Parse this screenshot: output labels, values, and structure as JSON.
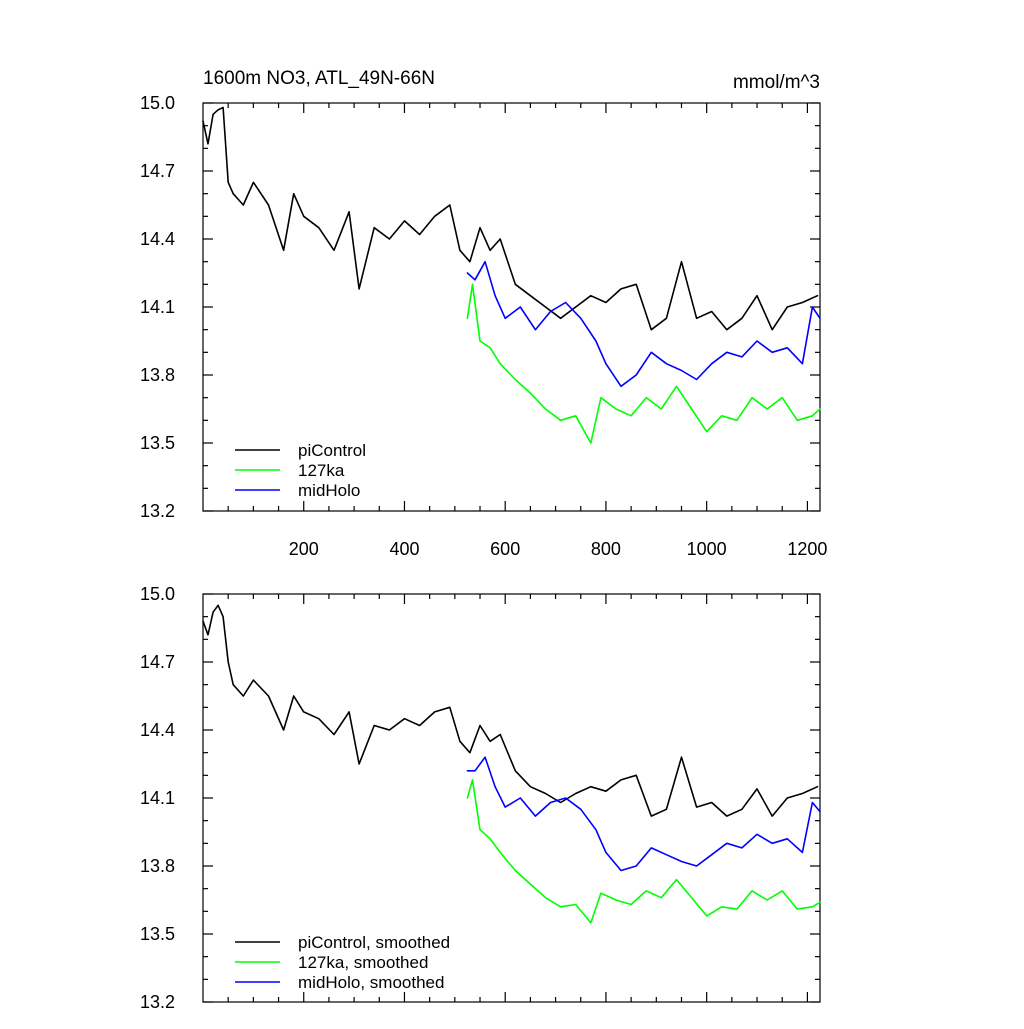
{
  "colors": {
    "piControl": "#000000",
    "127ka": "#00ff00",
    "midHolo": "#0000ff"
  },
  "chart_data": [
    {
      "type": "line",
      "title": "1600m NO3, ATL_49N-66N",
      "units": "mmol/m^3",
      "xlim": [
        0,
        1225
      ],
      "ylim": [
        13.2,
        15.0
      ],
      "yticks": [
        "15.0",
        "14.7",
        "14.4",
        "14.1",
        "13.8",
        "13.5",
        "13.2"
      ],
      "xticks": [
        "200",
        "400",
        "600",
        "800",
        "1000",
        "1200"
      ],
      "series": [
        {
          "name": "piControl",
          "color_key": "piControl",
          "x": [
            0,
            10,
            20,
            30,
            40,
            50,
            60,
            80,
            100,
            130,
            160,
            180,
            200,
            230,
            260,
            290,
            310,
            340,
            370,
            400,
            430,
            460,
            490,
            510,
            530,
            550,
            570,
            590,
            620,
            650,
            680,
            710,
            740,
            770,
            800,
            830,
            860,
            890,
            920,
            950,
            980,
            1010,
            1040,
            1070,
            1100,
            1130,
            1160,
            1190,
            1220
          ],
          "y": [
            14.92,
            14.82,
            14.95,
            14.97,
            14.98,
            14.65,
            14.6,
            14.55,
            14.65,
            14.55,
            14.35,
            14.6,
            14.5,
            14.45,
            14.35,
            14.52,
            14.18,
            14.45,
            14.4,
            14.48,
            14.42,
            14.5,
            14.55,
            14.35,
            14.3,
            14.45,
            14.35,
            14.4,
            14.2,
            14.15,
            14.1,
            14.05,
            14.1,
            14.15,
            14.12,
            14.18,
            14.2,
            14.0,
            14.05,
            14.3,
            14.05,
            14.08,
            14.0,
            14.05,
            14.15,
            14.0,
            14.1,
            14.12,
            14.15
          ]
        },
        {
          "name": "127ka",
          "color_key": "127ka",
          "x": [
            525,
            535,
            550,
            570,
            590,
            620,
            650,
            680,
            710,
            740,
            770,
            790,
            820,
            850,
            880,
            910,
            940,
            970,
            1000,
            1030,
            1060,
            1090,
            1120,
            1150,
            1180,
            1210,
            1225
          ],
          "y": [
            14.05,
            14.2,
            13.95,
            13.92,
            13.85,
            13.78,
            13.72,
            13.65,
            13.6,
            13.62,
            13.5,
            13.7,
            13.65,
            13.62,
            13.7,
            13.65,
            13.75,
            13.65,
            13.55,
            13.62,
            13.6,
            13.7,
            13.65,
            13.7,
            13.6,
            13.62,
            13.65
          ]
        },
        {
          "name": "midHolo",
          "color_key": "midHolo",
          "x": [
            525,
            540,
            560,
            580,
            600,
            630,
            660,
            690,
            720,
            750,
            780,
            800,
            830,
            860,
            890,
            920,
            950,
            980,
            1010,
            1040,
            1070,
            1100,
            1130,
            1160,
            1190,
            1210,
            1225
          ],
          "y": [
            14.25,
            14.22,
            14.3,
            14.15,
            14.05,
            14.1,
            14.0,
            14.08,
            14.12,
            14.05,
            13.95,
            13.85,
            13.75,
            13.8,
            13.9,
            13.85,
            13.82,
            13.78,
            13.85,
            13.9,
            13.88,
            13.95,
            13.9,
            13.92,
            13.85,
            14.1,
            14.05
          ]
        }
      ],
      "legend": {
        "placement": "bottom-left",
        "entries": [
          "piControl",
          "127ka",
          "midHolo"
        ]
      }
    },
    {
      "type": "line",
      "xlim": [
        0,
        1225
      ],
      "ylim": [
        13.2,
        15.0
      ],
      "yticks": [
        "15.0",
        "14.7",
        "14.4",
        "14.1",
        "13.8",
        "13.5",
        "13.2"
      ],
      "series": [
        {
          "name": "piControl, smoothed",
          "color_key": "piControl",
          "x": [
            0,
            10,
            20,
            30,
            40,
            50,
            60,
            80,
            100,
            130,
            160,
            180,
            200,
            230,
            260,
            290,
            310,
            340,
            370,
            400,
            430,
            460,
            490,
            510,
            530,
            550,
            570,
            590,
            620,
            650,
            680,
            710,
            740,
            770,
            800,
            830,
            860,
            890,
            920,
            950,
            980,
            1010,
            1040,
            1070,
            1100,
            1130,
            1160,
            1190,
            1220
          ],
          "y": [
            14.88,
            14.82,
            14.92,
            14.95,
            14.9,
            14.7,
            14.6,
            14.55,
            14.62,
            14.55,
            14.4,
            14.55,
            14.48,
            14.45,
            14.38,
            14.48,
            14.25,
            14.42,
            14.4,
            14.45,
            14.42,
            14.48,
            14.5,
            14.35,
            14.3,
            14.42,
            14.35,
            14.38,
            14.22,
            14.15,
            14.12,
            14.08,
            14.12,
            14.15,
            14.13,
            14.18,
            14.2,
            14.02,
            14.05,
            14.28,
            14.06,
            14.08,
            14.02,
            14.05,
            14.14,
            14.02,
            14.1,
            14.12,
            14.15
          ]
        },
        {
          "name": "127ka, smoothed",
          "color_key": "127ka",
          "x": [
            525,
            535,
            550,
            570,
            590,
            620,
            650,
            680,
            710,
            740,
            770,
            790,
            820,
            850,
            880,
            910,
            940,
            970,
            1000,
            1030,
            1060,
            1090,
            1120,
            1150,
            1180,
            1210,
            1225
          ],
          "y": [
            14.1,
            14.18,
            13.96,
            13.92,
            13.86,
            13.78,
            13.72,
            13.66,
            13.62,
            13.63,
            13.55,
            13.68,
            13.65,
            13.63,
            13.69,
            13.66,
            13.74,
            13.66,
            13.58,
            13.62,
            13.61,
            13.69,
            13.65,
            13.69,
            13.61,
            13.62,
            13.64
          ]
        },
        {
          "name": "midHolo, smoothed",
          "color_key": "midHolo",
          "x": [
            525,
            540,
            560,
            580,
            600,
            630,
            660,
            690,
            720,
            750,
            780,
            800,
            830,
            860,
            890,
            920,
            950,
            980,
            1010,
            1040,
            1070,
            1100,
            1130,
            1160,
            1190,
            1210,
            1225
          ],
          "y": [
            14.22,
            14.22,
            14.28,
            14.15,
            14.06,
            14.1,
            14.02,
            14.08,
            14.1,
            14.05,
            13.96,
            13.86,
            13.78,
            13.8,
            13.88,
            13.85,
            13.82,
            13.8,
            13.85,
            13.9,
            13.88,
            13.94,
            13.9,
            13.92,
            13.86,
            14.08,
            14.04
          ]
        }
      ],
      "legend": {
        "placement": "bottom-left",
        "entries": [
          "piControl, smoothed",
          "127ka, smoothed",
          "midHolo, smoothed"
        ]
      }
    }
  ]
}
